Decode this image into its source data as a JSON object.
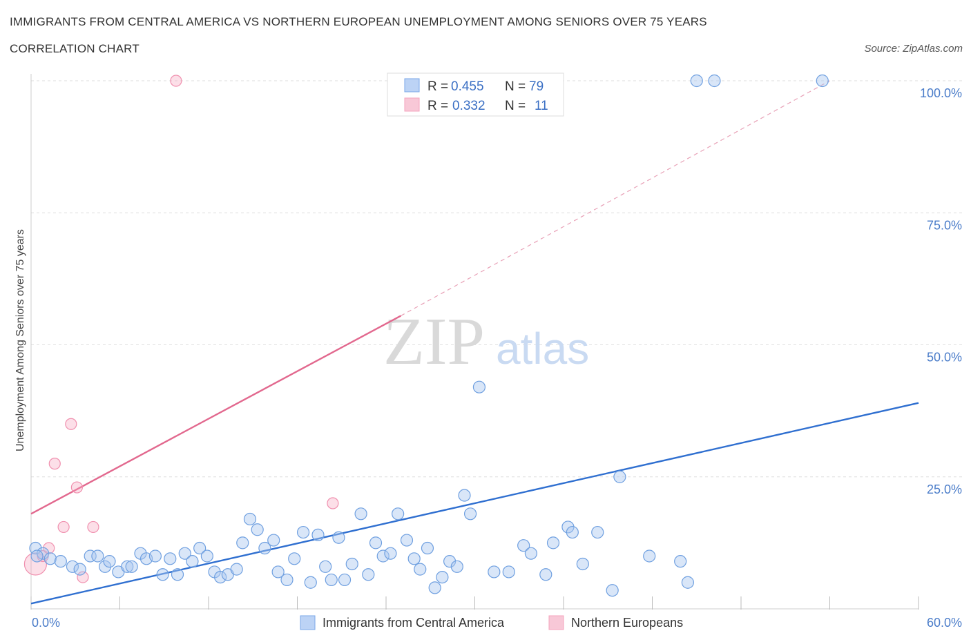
{
  "header": {
    "title": "IMMIGRANTS FROM CENTRAL AMERICA VS NORTHERN EUROPEAN UNEMPLOYMENT AMONG SENIORS OVER 75 YEARS",
    "subtitle": "CORRELATION CHART",
    "source": "Source: ZipAtlas.com"
  },
  "legend": {
    "series1": {
      "r_label": "R =",
      "r_value": "0.455",
      "n_label": "N =",
      "n_value": "79"
    },
    "series2": {
      "r_label": "R =",
      "r_value": "0.332",
      "n_label": "N =",
      "n_value": "11"
    }
  },
  "watermark": {
    "zip": "ZIP",
    "atlas": "atlas"
  },
  "chart_data": {
    "type": "scatter",
    "title": "IMMIGRANTS FROM CENTRAL AMERICA VS NORTHERN EUROPEAN UNEMPLOYMENT AMONG SENIORS OVER 75 YEARS",
    "ylabel": "Unemployment Among Seniors over 75 years",
    "xlabel": "",
    "xlim": [
      0,
      60
    ],
    "ylim": [
      0,
      100
    ],
    "x_tick_labels": [
      "0.0%",
      "60.0%"
    ],
    "y_tick_labels": [
      "100.0%",
      "75.0%",
      "50.0%",
      "25.0%"
    ],
    "y_ticks": [
      100,
      75,
      50,
      25
    ],
    "grid": true,
    "legend_position": "top-center",
    "series": [
      {
        "name": "Immigrants from Central America",
        "color": "#7aa7e8",
        "line_color": "#2f6fd0",
        "trend": {
          "x": [
            0,
            60
          ],
          "y": [
            1.0,
            39.0
          ]
        },
        "points": [
          [
            0.3,
            11.5
          ],
          [
            0.8,
            10.5
          ],
          [
            1.3,
            9.5
          ],
          [
            2.0,
            9.0
          ],
          [
            2.8,
            8.0
          ],
          [
            3.3,
            7.5
          ],
          [
            4.0,
            10.0
          ],
          [
            4.5,
            10.0
          ],
          [
            5.0,
            8.0
          ],
          [
            5.3,
            9.0
          ],
          [
            5.9,
            7.0
          ],
          [
            6.5,
            8.0
          ],
          [
            6.8,
            8.0
          ],
          [
            7.4,
            10.5
          ],
          [
            7.8,
            9.5
          ],
          [
            8.4,
            10.0
          ],
          [
            8.9,
            6.5
          ],
          [
            9.4,
            9.5
          ],
          [
            9.9,
            6.5
          ],
          [
            10.4,
            10.5
          ],
          [
            10.9,
            9.0
          ],
          [
            11.4,
            11.5
          ],
          [
            11.9,
            10.0
          ],
          [
            12.4,
            7.0
          ],
          [
            12.8,
            6.0
          ],
          [
            13.3,
            6.5
          ],
          [
            13.9,
            7.5
          ],
          [
            14.3,
            12.5
          ],
          [
            14.8,
            17.0
          ],
          [
            15.3,
            15.0
          ],
          [
            15.8,
            11.5
          ],
          [
            16.4,
            13.0
          ],
          [
            16.7,
            7.0
          ],
          [
            17.3,
            5.5
          ],
          [
            17.8,
            9.5
          ],
          [
            18.4,
            14.5
          ],
          [
            18.9,
            5.0
          ],
          [
            19.4,
            14.0
          ],
          [
            19.9,
            8.0
          ],
          [
            20.3,
            5.5
          ],
          [
            20.8,
            13.5
          ],
          [
            21.2,
            5.5
          ],
          [
            21.7,
            8.5
          ],
          [
            22.3,
            18.0
          ],
          [
            22.8,
            6.5
          ],
          [
            23.3,
            12.5
          ],
          [
            23.8,
            10.0
          ],
          [
            24.3,
            10.5
          ],
          [
            24.8,
            18.0
          ],
          [
            25.4,
            13.0
          ],
          [
            25.9,
            9.5
          ],
          [
            26.3,
            7.5
          ],
          [
            26.8,
            11.5
          ],
          [
            27.3,
            4.0
          ],
          [
            27.8,
            6.0
          ],
          [
            28.3,
            9.0
          ],
          [
            28.8,
            8.0
          ],
          [
            29.3,
            21.5
          ],
          [
            29.7,
            18.0
          ],
          [
            30.3,
            42.0
          ],
          [
            31.3,
            7.0
          ],
          [
            32.3,
            7.0
          ],
          [
            33.3,
            12.0
          ],
          [
            33.8,
            10.5
          ],
          [
            34.8,
            6.5
          ],
          [
            35.3,
            12.5
          ],
          [
            36.3,
            15.5
          ],
          [
            36.6,
            14.5
          ],
          [
            37.3,
            8.5
          ],
          [
            38.3,
            14.5
          ],
          [
            39.3,
            3.5
          ],
          [
            39.8,
            25.0
          ],
          [
            41.8,
            10.0
          ],
          [
            43.9,
            9.0
          ],
          [
            44.4,
            5.0
          ],
          [
            45.0,
            100.0
          ],
          [
            46.2,
            100.0
          ],
          [
            53.5,
            100.0
          ],
          [
            0.4,
            10.0
          ]
        ]
      },
      {
        "name": "Northern Europeans",
        "color": "#f5a3bd",
        "line_color": "#e2688e",
        "trend": {
          "x": [
            0,
            25
          ],
          "y": [
            18.0,
            55.5
          ]
        },
        "trend_dashed": {
          "x": [
            25,
            54
          ],
          "y": [
            55.5,
            100.0
          ]
        },
        "points": [
          [
            0.3,
            8.5
          ],
          [
            0.8,
            10.0
          ],
          [
            1.2,
            11.5
          ],
          [
            1.6,
            27.5
          ],
          [
            2.2,
            15.5
          ],
          [
            2.7,
            35.0
          ],
          [
            3.1,
            23.0
          ],
          [
            3.5,
            6.0
          ],
          [
            4.2,
            15.5
          ],
          [
            9.8,
            100.0
          ],
          [
            20.4,
            20.0
          ]
        ]
      }
    ],
    "legend_entries": [
      "Immigrants from Central America",
      "Northern Europeans"
    ]
  }
}
